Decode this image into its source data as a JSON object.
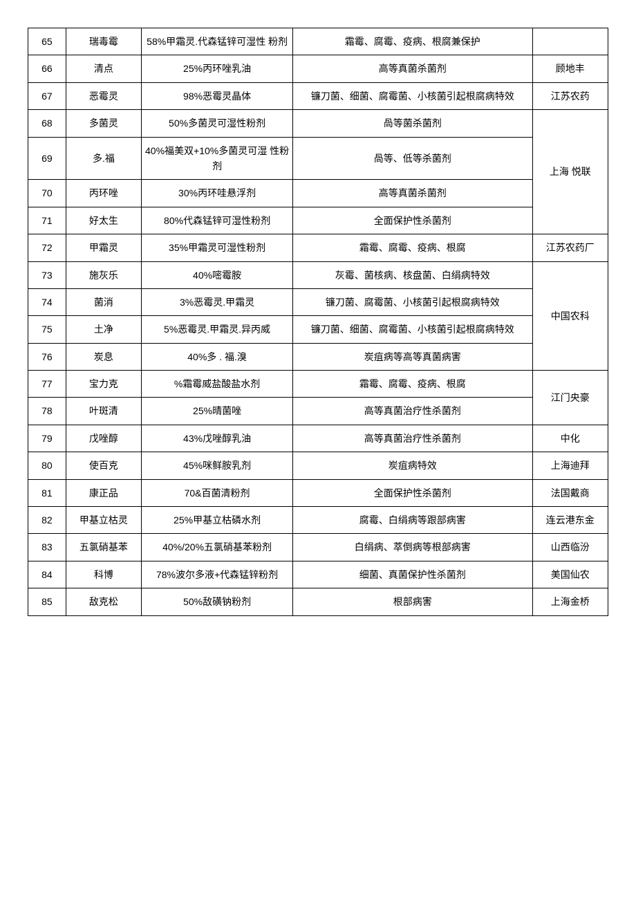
{
  "table": {
    "column_widths": [
      "6%",
      "12%",
      "24%",
      "38%",
      "12%"
    ],
    "border_color": "#000000",
    "background_color": "#ffffff",
    "text_color": "#000000",
    "font_size": 14,
    "rows": [
      {
        "num": "65",
        "name": "瑞毒霉",
        "spec": "58%甲霜灵.代森锰锌可湿性 粉剂",
        "use": "霜霉、腐霉、疫病、根腐兼保护",
        "mfr": "",
        "mfr_rowspan": 1
      },
      {
        "num": "66",
        "name": "清点",
        "spec": "25%丙环唑乳油",
        "use": "高等真菌杀菌剂",
        "mfr": "顾地丰",
        "mfr_rowspan": 1
      },
      {
        "num": "67",
        "name": "恶霉灵",
        "spec": "98%恶霉灵晶体",
        "use": "镰刀菌、细菌、腐霉菌、小核菌引起根腐病特效",
        "mfr": "江苏农药",
        "mfr_rowspan": 1
      },
      {
        "num": "68",
        "name": "多菌灵",
        "spec": "50%多菌灵可湿性粉剂",
        "use": "咼等菌杀菌剂",
        "mfr": "上海 悦联",
        "mfr_rowspan": 4
      },
      {
        "num": "69",
        "name": "多.福",
        "spec": "40%福美双+10%多菌灵可湿 性粉剂",
        "use": "咼等、低等杀菌剂"
      },
      {
        "num": "70",
        "name": "丙环唑",
        "spec": "30%丙环哇悬浮剂",
        "use": "高等真菌杀菌剂"
      },
      {
        "num": "71",
        "name": "好太生",
        "spec": "80%代森锰锌可湿性粉剂",
        "use": "全面保护性杀菌剂"
      },
      {
        "num": "72",
        "name": "甲霜灵",
        "spec": "35%甲霜灵可湿性粉剂",
        "use": "霜霉、腐霉、疫病、根腐",
        "mfr": "江苏农药厂",
        "mfr_rowspan": 1
      },
      {
        "num": "73",
        "name": "施灰乐",
        "spec": "40%嘧霉胺",
        "use": "灰霉、菌核病、核盘菌、白绢病特效",
        "mfr": "中国农科",
        "mfr_rowspan": 4
      },
      {
        "num": "74",
        "name": "菌消",
        "spec": "3%恶霉灵.甲霜灵",
        "use": "镰刀菌、腐霉菌、小核菌引起根腐病特效"
      },
      {
        "num": "75",
        "name": "土净",
        "spec": "5%恶霉灵.甲霜灵.异丙威",
        "use": "镰刀菌、细菌、腐霉菌、小核菌引起根腐病特效"
      },
      {
        "num": "76",
        "name": "炭息",
        "spec": "40%多 . 福.溴",
        "use": "炭疽病等高等真菌病害"
      },
      {
        "num": "77",
        "name": "宝力克",
        "spec": "%霜霉威盐酸盐水剂",
        "use": "霜霉、腐霉、疫病、根腐",
        "mfr": "江门央豪",
        "mfr_rowspan": 2
      },
      {
        "num": "78",
        "name": "叶斑清",
        "spec": "25%晴菌唑",
        "use": "高等真菌治疗性杀菌剂"
      },
      {
        "num": "79",
        "name": "戊唑醇",
        "spec": "43%戊唑醇乳油",
        "use": "高等真菌治疗性杀菌剂",
        "mfr": "中化",
        "mfr_rowspan": 1
      },
      {
        "num": "80",
        "name": "使百克",
        "spec": "45%咪鲜胺乳剂",
        "use": "炭疽病特效",
        "mfr": "上海迪拜",
        "mfr_rowspan": 1
      },
      {
        "num": "81",
        "name": "康正品",
        "spec": "70&百菌清粉剂",
        "use": "全面保护性杀菌剂",
        "mfr": "法国戴商",
        "mfr_rowspan": 1
      },
      {
        "num": "82",
        "name": "甲基立枯灵",
        "spec": "25%甲基立枯磷水剂",
        "use": "腐霉、白绢病等跟部病害",
        "mfr": "连云港东金",
        "mfr_rowspan": 1
      },
      {
        "num": "83",
        "name": "五氯硝基苯",
        "spec": "40%/20%五氯硝基苯粉剂",
        "use": "白绢病、萃倒病等根部病害",
        "mfr": "山西临汾",
        "mfr_rowspan": 1
      },
      {
        "num": "84",
        "name": "科博",
        "spec": "78%波尔多液+代森锰锌粉剂",
        "use": "细菌、真菌保护性杀菌剂",
        "mfr": "美国仙农",
        "mfr_rowspan": 1
      },
      {
        "num": "85",
        "name": "敌克松",
        "spec": "50%敌磺钠粉剂",
        "use": "根部病害",
        "mfr": "上海金桥",
        "mfr_rowspan": 1
      }
    ]
  }
}
